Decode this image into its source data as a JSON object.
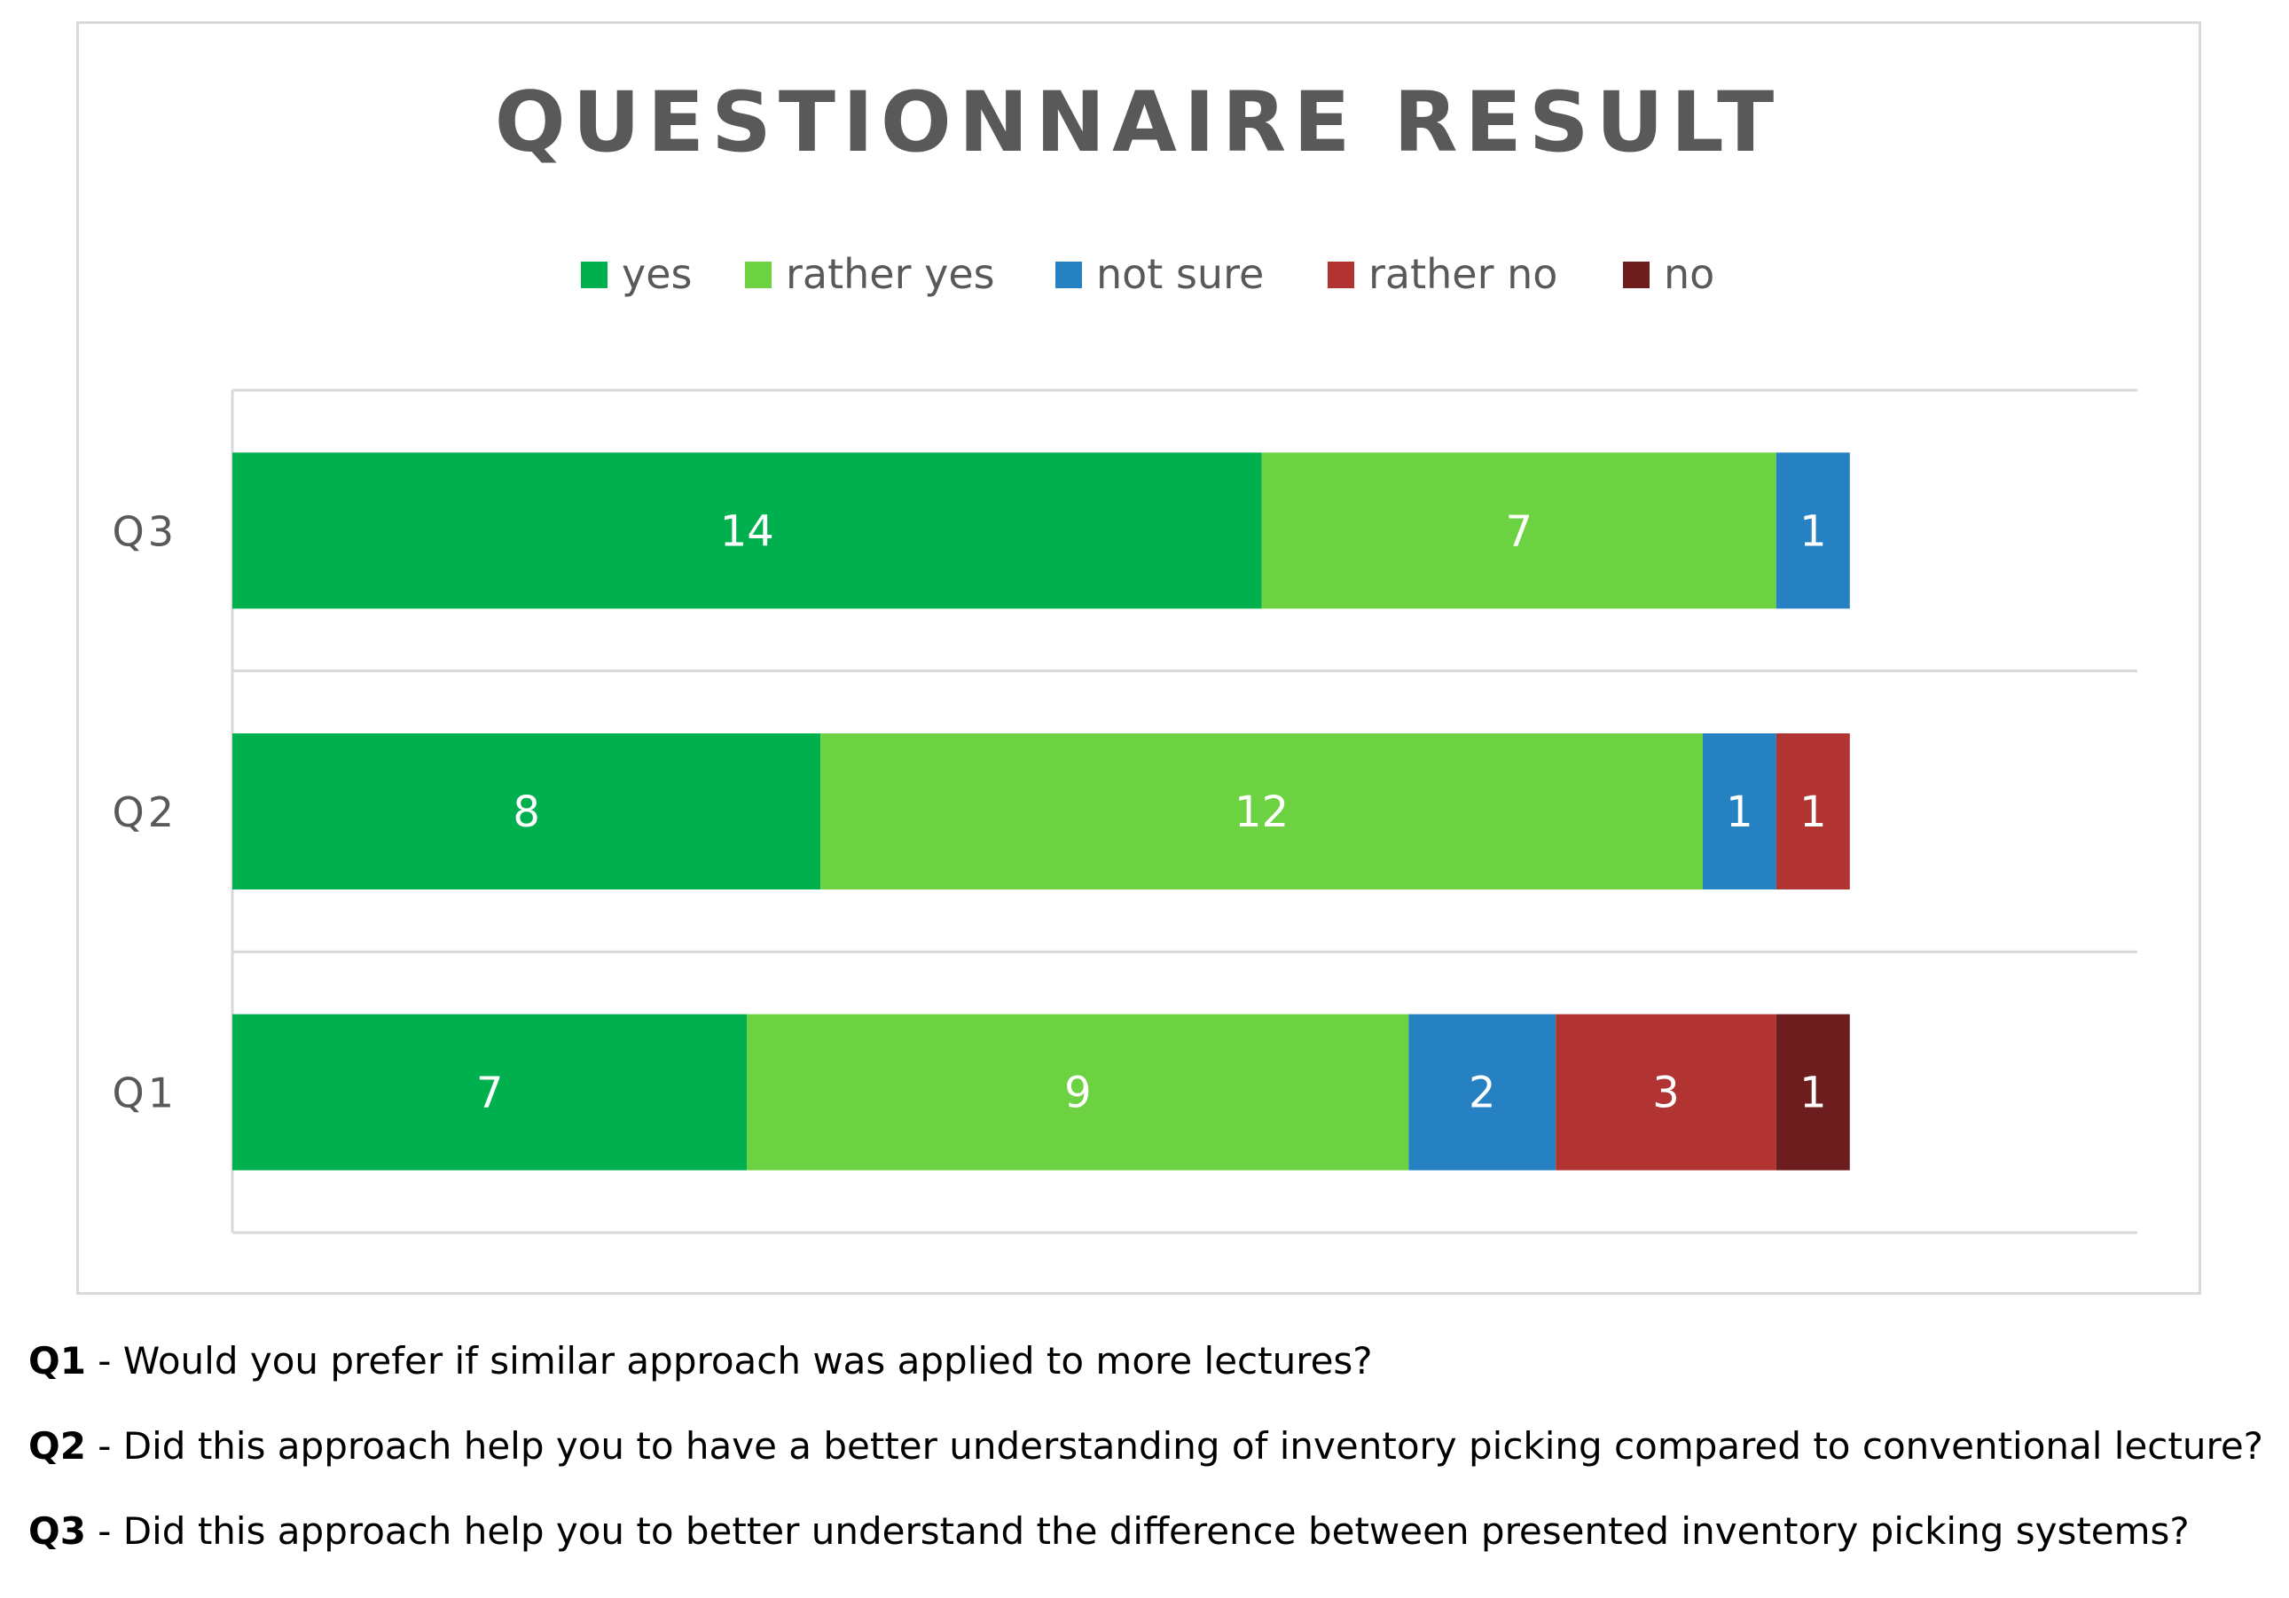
{
  "chart_data": {
    "type": "bar",
    "orientation": "horizontal",
    "stacked": true,
    "title": "QUESTIONNAIRE RESULT",
    "categories": [
      "Q1",
      "Q2",
      "Q3"
    ],
    "series": [
      {
        "name": "yes",
        "color": "#00b04f",
        "values": [
          7,
          8,
          14
        ]
      },
      {
        "name": "rather yes",
        "color": "#6dd241",
        "values": [
          9,
          12,
          7
        ]
      },
      {
        "name": "not sure",
        "color": "#2681c3",
        "values": [
          2,
          1,
          1
        ]
      },
      {
        "name": "rather no",
        "color": "#b23432",
        "values": [
          3,
          1,
          0
        ]
      },
      {
        "name": "no",
        "color": "#6e1d1e",
        "values": [
          1,
          0,
          0
        ]
      }
    ],
    "xlim": [
      0,
      22
    ],
    "legend_position": "top",
    "grid": "horizontal separators between categories"
  },
  "footnotes": [
    {
      "id": "Q1",
      "text": " - Would you prefer if similar approach was applied to more lectures?"
    },
    {
      "id": "Q2",
      "text": " - Did this approach help you to have a better understanding of inventory picking compared to conventional lecture?"
    },
    {
      "id": "Q3",
      "text": " - Did this approach help you to better understand the difference between presented inventory picking systems?"
    }
  ]
}
